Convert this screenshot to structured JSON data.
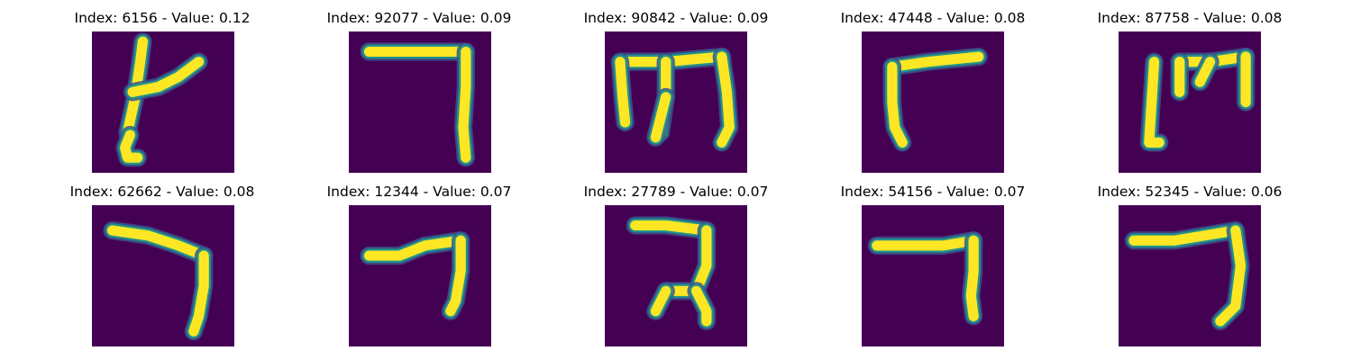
{
  "figure": {
    "cells": [
      {
        "title": "Index: 6156 - Value: 0.12",
        "index": 6156,
        "value": 0.12,
        "glyph": "6156-glyph"
      },
      {
        "title": "Index: 92077 - Value: 0.09",
        "index": 92077,
        "value": 0.09,
        "glyph": "92077-glyph"
      },
      {
        "title": "Index: 90842 - Value: 0.09",
        "index": 90842,
        "value": 0.09,
        "glyph": "90842-glyph"
      },
      {
        "title": "Index: 47448 - Value: 0.08",
        "index": 47448,
        "value": 0.08,
        "glyph": "47448-glyph"
      },
      {
        "title": "Index: 87758 - Value: 0.08",
        "index": 87758,
        "value": 0.08,
        "glyph": "87758-glyph"
      },
      {
        "title": "Index: 62662 - Value: 0.08",
        "index": 62662,
        "value": 0.08,
        "glyph": "62662-glyph"
      },
      {
        "title": "Index: 12344 - Value: 0.07",
        "index": 12344,
        "value": 0.07,
        "glyph": "12344-glyph"
      },
      {
        "title": "Index: 27789 - Value: 0.07",
        "index": 27789,
        "value": 0.07,
        "glyph": "27789-glyph"
      },
      {
        "title": "Index: 54156 - Value: 0.07",
        "index": 54156,
        "value": 0.07,
        "glyph": "54156-glyph"
      },
      {
        "title": "Index: 52345 - Value: 0.06",
        "index": 52345,
        "value": 0.06,
        "glyph": "52345-glyph"
      }
    ],
    "colors": {
      "background": "#440154",
      "stroke_core": "#fde725",
      "stroke_edge": "#21918c",
      "stroke_halo": "#3b528b"
    }
  }
}
